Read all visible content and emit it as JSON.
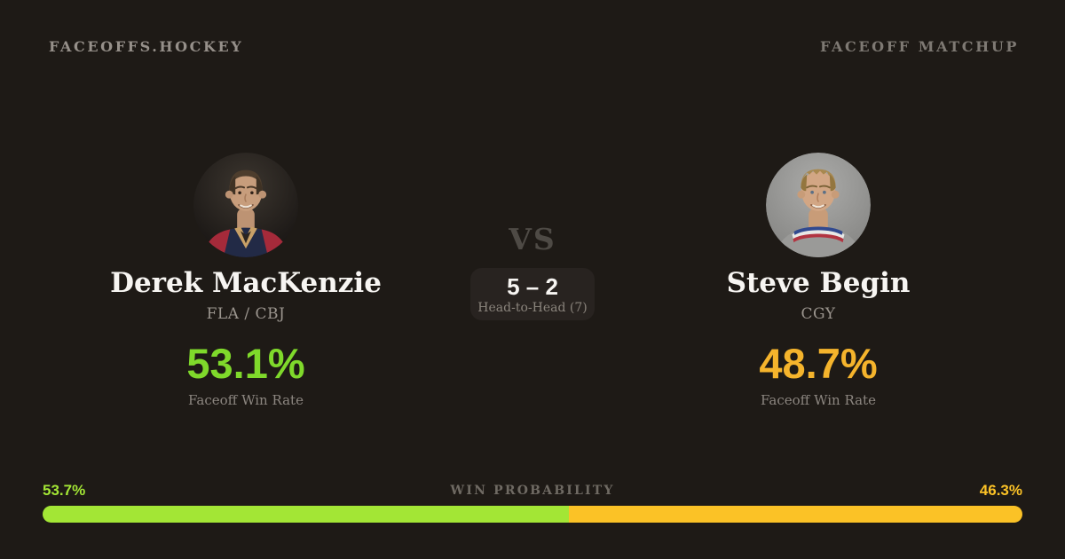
{
  "header": {
    "brand": "FACEOFFS.HOCKEY",
    "page_label": "FACEOFF MATCHUP"
  },
  "players": {
    "left": {
      "name": "Derek MacKenzie",
      "teams": "FLA / CBJ",
      "win_rate": "53.1%",
      "win_rate_label": "Faceoff Win Rate",
      "accent_color": "#7fd92b",
      "photo_alt": "Derek MacKenzie headshot"
    },
    "right": {
      "name": "Steve Begin",
      "teams": "CGY",
      "win_rate": "48.7%",
      "win_rate_label": "Faceoff Win Rate",
      "accent_color": "#f5b42c",
      "photo_alt": "Steve Begin headshot"
    }
  },
  "matchup": {
    "vs_label": "VS",
    "head_to_head_score": "5 – 2",
    "head_to_head_label": "Head-to-Head (7)"
  },
  "win_probability": {
    "title": "WIN PROBABILITY",
    "left_label": "53.7%",
    "right_label": "46.3%",
    "left_pct": 53.7,
    "right_pct": 46.3,
    "left_color": "#a3e635",
    "right_color": "#fbc226"
  },
  "colors": {
    "background": "#1e1a16",
    "text_primary": "#f7f5f2",
    "text_muted": "#8c8680"
  }
}
